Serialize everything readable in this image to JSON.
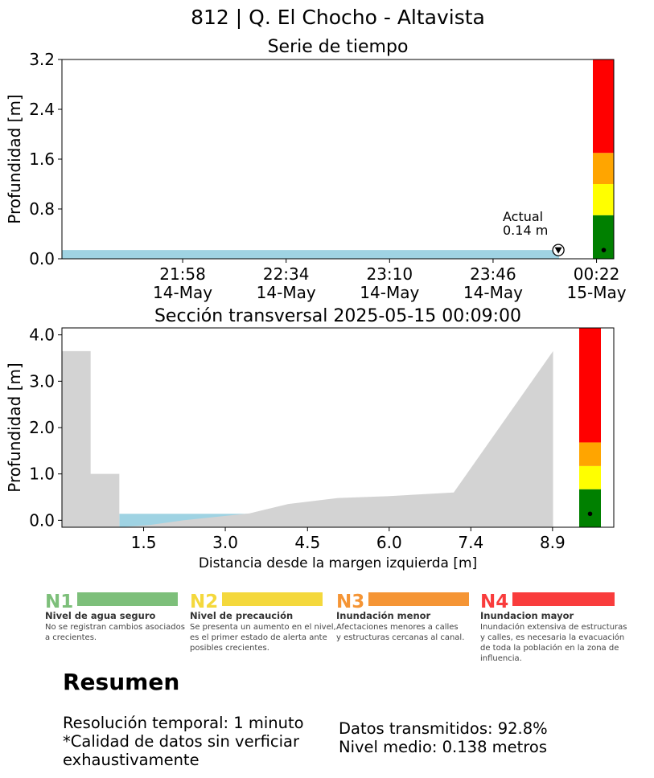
{
  "figure_title": "812 | Q. El Chocho - Altavista",
  "colors": {
    "water": "#9fd3e3",
    "terrain": "#d3d3d3",
    "level_red": "#ff0000",
    "level_orange": "#ffa500",
    "level_yellow": "#ffff00",
    "level_green": "#008000",
    "n1": "#7dbf7a",
    "n2": "#f4d83c",
    "n3": "#f59535",
    "n4": "#f93c3c"
  },
  "chart_data": [
    {
      "type": "area",
      "title": "Serie de tiempo",
      "ylabel": "Profundidad [m]",
      "xlabel": "",
      "ylim": [
        0,
        3.2
      ],
      "yticks": [
        "0.0",
        "0.8",
        "1.6",
        "2.4",
        "3.2"
      ],
      "xlim": [
        "2025-05-14 21:16",
        "2025-05-15 00:28"
      ],
      "xticks": [
        {
          "time": "2025-05-14 21:58",
          "label1": "21:58",
          "label2": "14-May"
        },
        {
          "time": "2025-05-14 22:34",
          "label1": "22:34",
          "label2": "14-May"
        },
        {
          "time": "2025-05-14 23:10",
          "label1": "23:10",
          "label2": "14-May"
        },
        {
          "time": "2025-05-14 23:46",
          "label1": "23:46",
          "label2": "14-May"
        },
        {
          "time": "2025-05-15 00:22",
          "label1": "00:22",
          "label2": "15-May"
        }
      ],
      "series": [
        {
          "x": [
            "2025-05-14 21:16",
            "2025-05-14 22:00",
            "2025-05-14 22:40",
            "2025-05-14 23:20",
            "2025-05-14 23:50",
            "2025-05-15 00:09"
          ],
          "values": [
            0.14,
            0.14,
            0.14,
            0.14,
            0.14,
            0.14
          ]
        }
      ],
      "annotation": {
        "label": "Actual",
        "value_text": "0.14 m",
        "x": "2025-05-15 00:09",
        "y": 0.14
      },
      "alert_levels": [
        {
          "from": 0,
          "to": 0.7,
          "color": "#008000"
        },
        {
          "from": 0.7,
          "to": 1.2,
          "color": "#ffff00"
        },
        {
          "from": 1.2,
          "to": 1.7,
          "color": "#ffa500"
        },
        {
          "from": 1.7,
          "to": 3.2,
          "color": "#ff0000"
        }
      ],
      "current_marker": 0.14
    },
    {
      "type": "area",
      "title": "Sección transversal 2025-05-15 00:09:00",
      "xlabel": "Distancia desde la margen izquierda [m]",
      "ylabel": "Profundidad [m]",
      "xlim": [
        0,
        10
      ],
      "ylim": [
        -0.15,
        4.15
      ],
      "xticks": [
        "1.5",
        "3.0",
        "4.5",
        "6.0",
        "7.4",
        "8.9"
      ],
      "xtick_values": [
        1.48,
        2.96,
        4.45,
        5.93,
        7.41,
        8.89
      ],
      "yticks": [
        "0.0",
        "1.0",
        "2.0",
        "3.0",
        "4.0"
      ],
      "ytick_values": [
        0,
        1,
        2,
        3,
        4
      ],
      "terrain": {
        "x": [
          0,
          0.52,
          0.52,
          1.04,
          1.04,
          1.6,
          2.2,
          3.4,
          4.1,
          5.0,
          5.9,
          7.1,
          8.9,
          8.9
        ],
        "y": [
          3.65,
          3.65,
          1.0,
          1.0,
          -0.15,
          -0.1,
          0.0,
          0.15,
          0.35,
          0.48,
          0.52,
          0.6,
          3.65,
          -0.15
        ]
      },
      "water": {
        "x_start": 1.04,
        "x_end": 3.4,
        "level": 0.14
      },
      "alert_levels": [
        {
          "from": -0.15,
          "to": 0.67,
          "color": "#008000"
        },
        {
          "from": 0.67,
          "to": 1.17,
          "color": "#ffff00"
        },
        {
          "from": 1.17,
          "to": 1.68,
          "color": "#ffa500"
        },
        {
          "from": 1.68,
          "to": 4.15,
          "color": "#ff0000"
        }
      ],
      "current_marker": 0.14
    }
  ],
  "legend": [
    {
      "code": "N1",
      "title": "Nivel de agua seguro",
      "lines": [
        "No se registran cambios asociados",
        "a crecientes."
      ]
    },
    {
      "code": "N2",
      "title": "Nivel de precaución",
      "lines": [
        "Se presenta un aumento en el nivel,",
        "es el primer estado de alerta ante",
        "posibles crecientes."
      ]
    },
    {
      "code": "N3",
      "title": "Inundación menor",
      "lines": [
        "Afectaciones menores a calles",
        "y estructuras cercanas al canal."
      ]
    },
    {
      "code": "N4",
      "title": "Inundacion mayor",
      "lines": [
        "Inundación extensiva de estructuras",
        "y calles, es necesaria la evacuación",
        "de toda la población en la zona de",
        "influencia."
      ]
    }
  ],
  "summary": {
    "title": "Resumen",
    "resolution": "Resolución temporal: 1 minuto",
    "quality_line1": "*Calidad de datos sin verficiar",
    "quality_line2": "exhaustivamente",
    "transmitted": "Datos transmitidos: 92.8%",
    "mean_level": "Nivel medio: 0.138 metros"
  }
}
